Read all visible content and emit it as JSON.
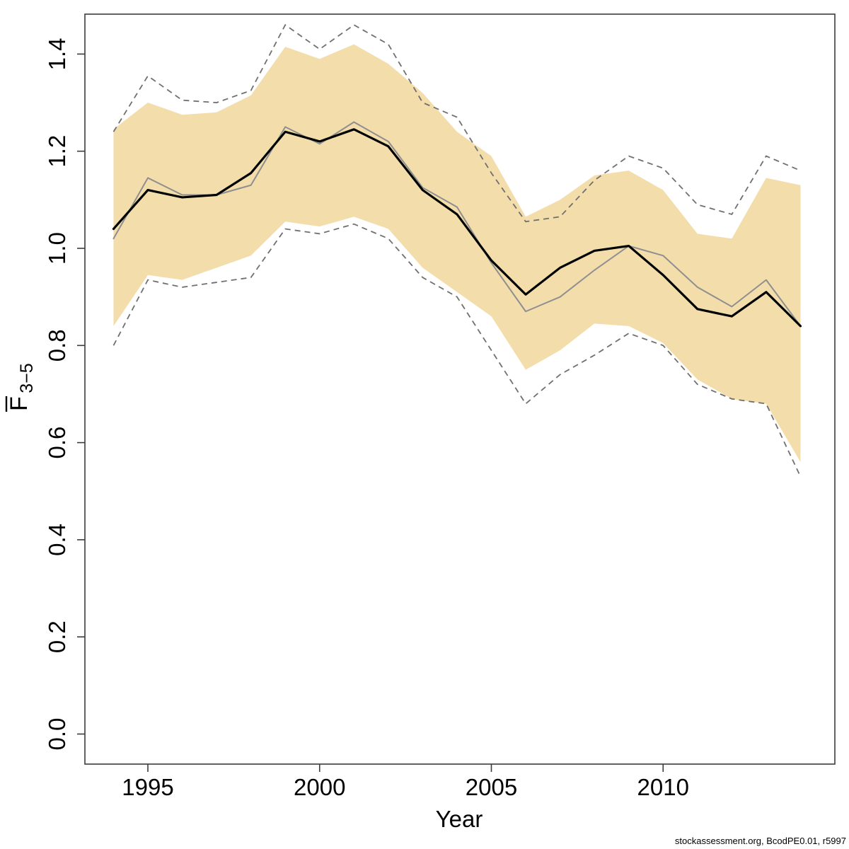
{
  "footer": {
    "credit": "stockassessment.org, BcodPE0.01, r5997"
  },
  "chart_data": {
    "type": "line",
    "title": "",
    "xlabel": "Year",
    "ylabel_main": "F",
    "ylabel_sub": "3−5",
    "ylabel_overline": true,
    "grid": false,
    "legend": "none",
    "xlim": [
      1993.8,
      2014.9
    ],
    "ylim": [
      -0.06,
      1.49
    ],
    "x": [
      1994,
      1995,
      1996,
      1997,
      1998,
      1999,
      2000,
      2001,
      2002,
      2003,
      2004,
      2005,
      2006,
      2007,
      2008,
      2009,
      2010,
      2011,
      2012,
      2013,
      2014
    ],
    "x_axis": {
      "ticks": [
        {
          "value": 1995,
          "label": "1995"
        },
        {
          "value": 2000,
          "label": "2000"
        },
        {
          "value": 2005,
          "label": "2005"
        },
        {
          "value": 2010,
          "label": "2010"
        }
      ]
    },
    "y_axis": {
      "ticks": [
        {
          "value": 0.0,
          "label": "0.0"
        },
        {
          "value": 0.2,
          "label": "0.2"
        },
        {
          "value": 0.4,
          "label": "0.4"
        },
        {
          "value": 0.6,
          "label": "0.6"
        },
        {
          "value": 0.8,
          "label": "0.8"
        },
        {
          "value": 1.0,
          "label": "1.0"
        },
        {
          "value": 1.2,
          "label": "1.2"
        },
        {
          "value": 1.4,
          "label": "1.4"
        }
      ]
    },
    "band": {
      "name": "shaded-confidence-band",
      "fill": "#f3ddab",
      "upper": [
        1.245,
        1.3,
        1.275,
        1.28,
        1.315,
        1.415,
        1.39,
        1.42,
        1.38,
        1.32,
        1.24,
        1.19,
        1.065,
        1.1,
        1.15,
        1.16,
        1.12,
        1.03,
        1.02,
        1.145,
        1.13
      ],
      "lower": [
        0.84,
        0.945,
        0.935,
        0.96,
        0.985,
        1.055,
        1.045,
        1.065,
        1.04,
        0.96,
        0.91,
        0.86,
        0.75,
        0.79,
        0.845,
        0.84,
        0.805,
        0.73,
        0.69,
        0.68,
        0.56
      ]
    },
    "dashed_band": {
      "name": "outer-confidence-band-dashed",
      "stroke": "#707070",
      "style": "dashed",
      "upper": [
        1.24,
        1.355,
        1.305,
        1.3,
        1.325,
        1.46,
        1.41,
        1.46,
        1.42,
        1.3,
        1.27,
        1.155,
        1.055,
        1.065,
        1.14,
        1.19,
        1.165,
        1.09,
        1.07,
        1.19,
        1.16
      ],
      "lower": [
        0.8,
        0.935,
        0.92,
        0.93,
        0.94,
        1.04,
        1.03,
        1.05,
        1.02,
        0.94,
        0.9,
        0.79,
        0.68,
        0.74,
        0.78,
        0.825,
        0.8,
        0.72,
        0.69,
        0.68,
        0.53
      ]
    },
    "series": [
      {
        "name": "estimate-black",
        "color": "#000000",
        "width": 3.2,
        "style": "solid",
        "values": [
          1.04,
          1.12,
          1.105,
          1.11,
          1.155,
          1.24,
          1.22,
          1.245,
          1.21,
          1.12,
          1.07,
          0.975,
          0.905,
          0.96,
          0.995,
          1.005,
          0.945,
          0.875,
          0.86,
          0.91,
          0.84
        ]
      },
      {
        "name": "comparison-gray",
        "color": "#8f8f8f",
        "width": 2,
        "style": "solid",
        "values": [
          1.02,
          1.145,
          1.11,
          1.11,
          1.13,
          1.25,
          1.215,
          1.26,
          1.22,
          1.125,
          1.085,
          0.97,
          0.87,
          0.9,
          0.955,
          1.005,
          0.985,
          0.92,
          0.88,
          0.935,
          0.84
        ]
      }
    ]
  }
}
